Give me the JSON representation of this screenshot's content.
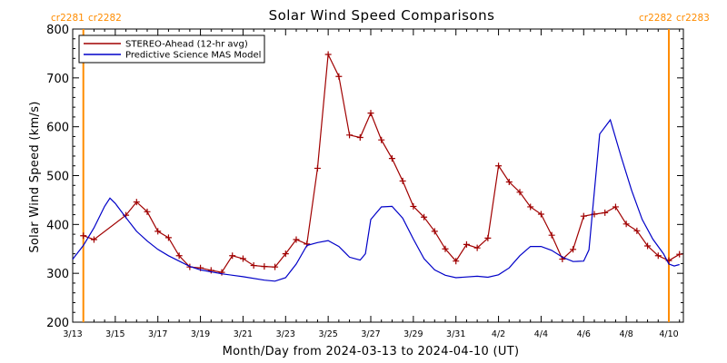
{
  "chart_data": {
    "type": "line",
    "title": "Solar Wind Speed Comparisons",
    "xlabel": "Month/Day from 2024-03-13 to 2024-04-10 (UT)",
    "ylabel": "Solar Wind Speed (km/s)",
    "xlim": [
      "2024-03-13",
      "2024-04-10"
    ],
    "ylim": [
      200,
      800
    ],
    "y_ticks": [
      200,
      300,
      400,
      500,
      600,
      700,
      800
    ],
    "x_ticks": [
      {
        "date": "2024-03-13",
        "label": "3/13"
      },
      {
        "date": "2024-03-15",
        "label": "3/15"
      },
      {
        "date": "2024-03-17",
        "label": "3/17"
      },
      {
        "date": "2024-03-19",
        "label": "3/19"
      },
      {
        "date": "2024-03-21",
        "label": "3/21"
      },
      {
        "date": "2024-03-23",
        "label": "3/23"
      },
      {
        "date": "2024-03-25",
        "label": "3/25"
      },
      {
        "date": "2024-03-27",
        "label": "3/27"
      },
      {
        "date": "2024-03-29",
        "label": "3/29"
      },
      {
        "date": "2024-03-31",
        "label": "3/31"
      },
      {
        "date": "2024-04-02",
        "label": "4/2"
      },
      {
        "date": "2024-04-04",
        "label": "4/4"
      },
      {
        "date": "2024-04-06",
        "label": "4/6"
      },
      {
        "date": "2024-04-08",
        "label": "4/8"
      },
      {
        "date": "2024-04-10",
        "label": "4/10"
      }
    ],
    "legend_position": "top-left",
    "series": [
      {
        "name": "STEREO-Ahead (12-hr avg)",
        "color": "#a00000",
        "marker": "plus",
        "points": [
          [
            "2024-03-13 12:00",
            377
          ],
          [
            "2024-03-14 00:00",
            369
          ],
          [
            "2024-03-15 12:00",
            419
          ],
          [
            "2024-03-16 00:00",
            446
          ],
          [
            "2024-03-16 12:00",
            426
          ],
          [
            "2024-03-17 00:00",
            386
          ],
          [
            "2024-03-17 12:00",
            373
          ],
          [
            "2024-03-18 00:00",
            336
          ],
          [
            "2024-03-18 12:00",
            313
          ],
          [
            "2024-03-19 00:00",
            311
          ],
          [
            "2024-03-19 12:00",
            306
          ],
          [
            "2024-03-20 00:00",
            302
          ],
          [
            "2024-03-20 12:00",
            336
          ],
          [
            "2024-03-21 00:00",
            330
          ],
          [
            "2024-03-21 12:00",
            316
          ],
          [
            "2024-03-22 00:00",
            314
          ],
          [
            "2024-03-22 12:00",
            313
          ],
          [
            "2024-03-23 00:00",
            340
          ],
          [
            "2024-03-23 12:00",
            369
          ],
          [
            "2024-03-24 00:00",
            360
          ],
          [
            "2024-03-24 12:00",
            515
          ],
          [
            "2024-03-25 00:00",
            748
          ],
          [
            "2024-03-25 12:00",
            703
          ],
          [
            "2024-03-26 00:00",
            583
          ],
          [
            "2024-03-26 12:00",
            578
          ],
          [
            "2024-03-27 00:00",
            628
          ],
          [
            "2024-03-27 12:00",
            573
          ],
          [
            "2024-03-28 00:00",
            535
          ],
          [
            "2024-03-28 12:00",
            489
          ],
          [
            "2024-03-29 00:00",
            437
          ],
          [
            "2024-03-29 12:00",
            415
          ],
          [
            "2024-03-30 00:00",
            386
          ],
          [
            "2024-03-30 12:00",
            350
          ],
          [
            "2024-03-31 00:00",
            325
          ],
          [
            "2024-03-31 12:00",
            359
          ],
          [
            "2024-04-01 00:00",
            352
          ],
          [
            "2024-04-01 12:00",
            372
          ],
          [
            "2024-04-02 00:00",
            520
          ],
          [
            "2024-04-02 12:00",
            487
          ],
          [
            "2024-04-03 00:00",
            466
          ],
          [
            "2024-04-03 12:00",
            436
          ],
          [
            "2024-04-04 00:00",
            421
          ],
          [
            "2024-04-04 12:00",
            378
          ],
          [
            "2024-04-05 00:00",
            329
          ],
          [
            "2024-04-05 12:00",
            349
          ],
          [
            "2024-04-06 00:00",
            417
          ],
          [
            "2024-04-06 12:00",
            421
          ],
          [
            "2024-04-07 00:00",
            424
          ],
          [
            "2024-04-07 12:00",
            436
          ],
          [
            "2024-04-08 00:00",
            401
          ],
          [
            "2024-04-08 12:00",
            387
          ],
          [
            "2024-04-09 00:00",
            356
          ],
          [
            "2024-04-09 12:00",
            336
          ],
          [
            "2024-04-10 00:00",
            326
          ],
          [
            "2024-04-10 12:00",
            339
          ]
        ]
      },
      {
        "name": "Predictive Science MAS Model",
        "color": "#0000c8",
        "marker": "none",
        "points": [
          [
            "2024-03-13 00:00",
            329
          ],
          [
            "2024-03-13 12:00",
            357
          ],
          [
            "2024-03-14 00:00",
            393
          ],
          [
            "2024-03-14 12:00",
            437
          ],
          [
            "2024-03-14 18:00",
            454
          ],
          [
            "2024-03-15 00:00",
            443
          ],
          [
            "2024-03-15 12:00",
            414
          ],
          [
            "2024-03-16 00:00",
            386
          ],
          [
            "2024-03-16 12:00",
            366
          ],
          [
            "2024-03-17 00:00",
            349
          ],
          [
            "2024-03-17 12:00",
            336
          ],
          [
            "2024-03-18 00:00",
            325
          ],
          [
            "2024-03-18 12:00",
            314
          ],
          [
            "2024-03-19 00:00",
            307
          ],
          [
            "2024-03-20 00:00",
            299
          ],
          [
            "2024-03-21 00:00",
            293
          ],
          [
            "2024-03-22 00:00",
            286
          ],
          [
            "2024-03-22 12:00",
            284
          ],
          [
            "2024-03-23 00:00",
            291
          ],
          [
            "2024-03-23 12:00",
            319
          ],
          [
            "2024-03-24 00:00",
            357
          ],
          [
            "2024-03-24 12:00",
            363
          ],
          [
            "2024-03-25 00:00",
            367
          ],
          [
            "2024-03-25 12:00",
            355
          ],
          [
            "2024-03-26 00:00",
            333
          ],
          [
            "2024-03-26 12:00",
            327
          ],
          [
            "2024-03-26 18:00",
            340
          ],
          [
            "2024-03-27 00:00",
            410
          ],
          [
            "2024-03-27 12:00",
            436
          ],
          [
            "2024-03-28 00:00",
            437
          ],
          [
            "2024-03-28 12:00",
            413
          ],
          [
            "2024-03-29 00:00",
            370
          ],
          [
            "2024-03-29 12:00",
            330
          ],
          [
            "2024-03-30 00:00",
            307
          ],
          [
            "2024-03-30 12:00",
            296
          ],
          [
            "2024-03-31 00:00",
            291
          ],
          [
            "2024-04-01 00:00",
            294
          ],
          [
            "2024-04-01 12:00",
            292
          ],
          [
            "2024-04-02 00:00",
            297
          ],
          [
            "2024-04-02 12:00",
            311
          ],
          [
            "2024-04-03 00:00",
            336
          ],
          [
            "2024-04-03 12:00",
            355
          ],
          [
            "2024-04-04 00:00",
            355
          ],
          [
            "2024-04-04 12:00",
            347
          ],
          [
            "2024-04-05 00:00",
            333
          ],
          [
            "2024-04-05 12:00",
            324
          ],
          [
            "2024-04-06 00:00",
            325
          ],
          [
            "2024-04-06 06:00",
            348
          ],
          [
            "2024-04-06 18:00",
            585
          ],
          [
            "2024-04-07 06:00",
            614
          ],
          [
            "2024-04-07 18:00",
            540
          ],
          [
            "2024-04-08 06:00",
            470
          ],
          [
            "2024-04-08 18:00",
            410
          ],
          [
            "2024-04-09 06:00",
            370
          ],
          [
            "2024-04-09 18:00",
            340
          ],
          [
            "2024-04-10 00:00",
            319
          ],
          [
            "2024-04-10 06:00",
            315
          ],
          [
            "2024-04-10 12:00",
            318
          ]
        ]
      }
    ],
    "rotation_markers": {
      "color": "#ff8c00",
      "lines": [
        {
          "date": "2024-03-13 12:00",
          "left_label": "cr2281",
          "right_label": "cr2282",
          "side": "left"
        },
        {
          "date": "2024-04-10 00:00",
          "left_label": "cr2282",
          "right_label": "cr2283",
          "side": "right"
        }
      ]
    }
  }
}
